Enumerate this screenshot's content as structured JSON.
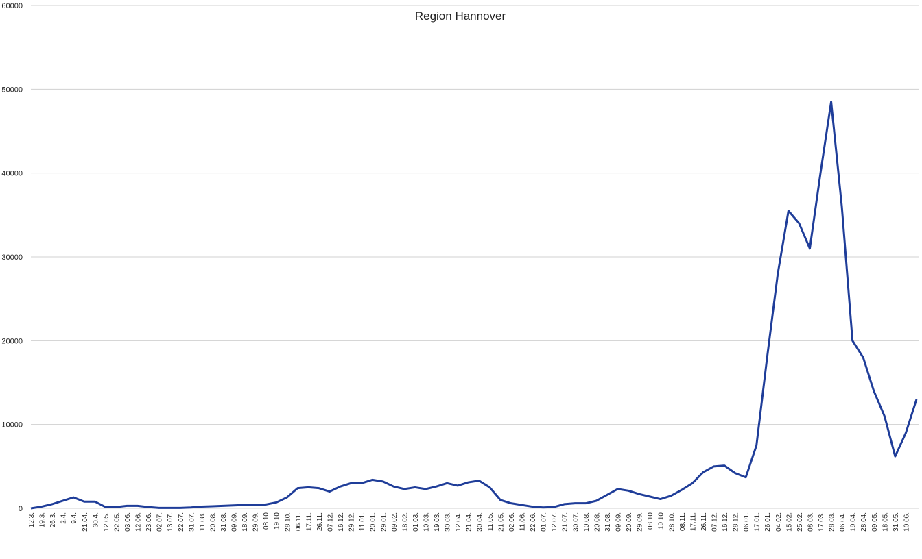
{
  "chart_data": {
    "type": "line",
    "title": "Region Hannover",
    "categories": [
      "12.3.",
      "19.3.",
      "26.3.",
      "2.4.",
      "9.4.",
      "21.04.",
      "30.4.",
      "12.05.",
      "22.05.",
      "03.06.",
      "12.06.",
      "23.06.",
      "02.07.",
      "13.07.",
      "22.07.",
      "31.07.",
      "11.08.",
      "20.08.",
      "31.08.",
      "09.09.",
      "18.09.",
      "29.09.",
      "08.10",
      "19.10",
      "28.10.",
      "06.11.",
      "17.11.",
      "26.11.",
      "07.12.",
      "16.12.",
      "29.12.",
      "11.01.",
      "20.01.",
      "29.01.",
      "09.02.",
      "18.02.",
      "01.03.",
      "10.03.",
      "19.03.",
      "30.03.",
      "12.04.",
      "21.04.",
      "30.04.",
      "11.05.",
      "21.05.",
      "02.06.",
      "11.06.",
      "22.06.",
      "01.07.",
      "12.07.",
      "21.07.",
      "30.07.",
      "10.08.",
      "20.08.",
      "31.08.",
      "09.09.",
      "20.09.",
      "29.09.",
      "08.10",
      "19.10",
      "28.10.",
      "08.11.",
      "17.11.",
      "26.11.",
      "07.12.",
      "16.12.",
      "28.12.",
      "06.01.",
      "17.01.",
      "26.01.",
      "04.02.",
      "15.02.",
      "25.02.",
      "08.03.",
      "17.03.",
      "28.03.",
      "06.04.",
      "19.04.",
      "28.04.",
      "09.05.",
      "18.05.",
      "31.05.",
      "10.06.",
      null
    ],
    "series": [
      {
        "name": "Region Hannover",
        "color": "#1f3d99",
        "values": [
          0,
          200,
          500,
          900,
          1300,
          800,
          800,
          150,
          150,
          300,
          300,
          150,
          50,
          50,
          50,
          100,
          200,
          250,
          300,
          350,
          400,
          450,
          450,
          700,
          1300,
          2400,
          2500,
          2400,
          2000,
          2600,
          3000,
          3000,
          3400,
          3200,
          2600,
          2300,
          2500,
          2300,
          2600,
          3000,
          2700,
          3100,
          3300,
          2500,
          1000,
          600,
          400,
          200,
          100,
          150,
          500,
          600,
          600,
          900,
          1600,
          2300,
          2100,
          1700,
          1400,
          1100,
          1500,
          2200,
          3000,
          4300,
          5000,
          5100,
          4200,
          3700,
          7500,
          18000,
          28000,
          35500,
          34000,
          31000,
          40000,
          48500,
          36000,
          20000,
          18000,
          14000,
          11000,
          6200,
          9000,
          13000
        ]
      }
    ],
    "ylim": [
      0,
      60000
    ],
    "yticks": [
      0,
      10000,
      20000,
      30000,
      40000,
      50000,
      60000
    ],
    "grid": true
  }
}
